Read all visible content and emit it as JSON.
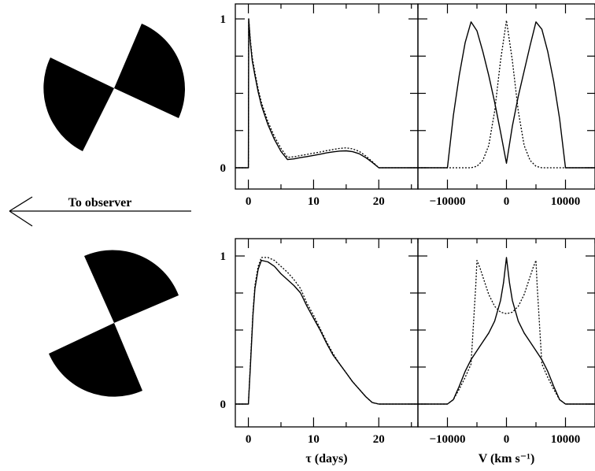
{
  "arrow_label": "To observer",
  "colors": {
    "ink": "#000000",
    "background": "#ffffff"
  },
  "chart_data": [
    {
      "type": "line",
      "panel": "top-left",
      "x_ticks": [
        "0",
        "10",
        "20"
      ],
      "y_ticks": [
        "0",
        "1"
      ],
      "xlim": [
        -2,
        26
      ],
      "ylim": [
        0,
        1.05
      ],
      "series": [
        {
          "style": "solid",
          "x": [
            -2,
            0,
            0.05,
            0.3,
            0.6,
            1,
            1.5,
            2,
            3,
            4,
            5,
            6,
            7,
            8,
            9,
            10,
            11,
            12,
            13,
            14,
            15,
            16,
            17,
            18,
            19,
            20,
            22,
            26
          ],
          "y": [
            0,
            0,
            1.0,
            0.84,
            0.72,
            0.62,
            0.51,
            0.42,
            0.29,
            0.19,
            0.11,
            0.055,
            0.06,
            0.068,
            0.075,
            0.083,
            0.091,
            0.1,
            0.107,
            0.112,
            0.114,
            0.108,
            0.094,
            0.068,
            0.036,
            0.0,
            0,
            0
          ]
        },
        {
          "style": "dotted",
          "x": [
            -2,
            0,
            0.05,
            0.3,
            0.6,
            1,
            1.5,
            2,
            3,
            4,
            5,
            6,
            7,
            8,
            9,
            10,
            11,
            12,
            13,
            14,
            15,
            16,
            17,
            18,
            19,
            20,
            22,
            26
          ],
          "y": [
            0,
            0,
            1.0,
            0.86,
            0.74,
            0.64,
            0.53,
            0.44,
            0.31,
            0.21,
            0.13,
            0.07,
            0.074,
            0.082,
            0.09,
            0.098,
            0.106,
            0.115,
            0.123,
            0.13,
            0.134,
            0.127,
            0.11,
            0.08,
            0.042,
            0.0,
            0,
            0
          ]
        }
      ]
    },
    {
      "type": "line",
      "panel": "top-right",
      "x_ticks": [
        "−10000",
        "0",
        "10000"
      ],
      "xlim": [
        -15000,
        15000
      ],
      "ylim": [
        0,
        1.05
      ],
      "series": [
        {
          "style": "solid",
          "x": [
            -15000,
            -11000,
            -10000,
            -9000,
            -8000,
            -7000,
            -6000,
            -5000,
            -4000,
            -3000,
            -2000,
            -1000,
            0,
            1000,
            2000,
            3000,
            4000,
            5000,
            6000,
            7000,
            8000,
            9000,
            10000,
            11000,
            15000
          ],
          "y": [
            0,
            0,
            0,
            0.35,
            0.62,
            0.84,
            0.98,
            0.92,
            0.78,
            0.62,
            0.44,
            0.24,
            0.03,
            0.28,
            0.48,
            0.65,
            0.82,
            0.98,
            0.93,
            0.78,
            0.58,
            0.33,
            0,
            0,
            0
          ]
        },
        {
          "style": "dotted",
          "x": [
            -15000,
            -6000,
            -5000,
            -4000,
            -3000,
            -2000,
            -1000,
            0,
            1000,
            2000,
            3000,
            4000,
            5000,
            6000,
            15000
          ],
          "y": [
            0,
            0,
            0.01,
            0.05,
            0.15,
            0.38,
            0.72,
            0.99,
            0.72,
            0.38,
            0.15,
            0.05,
            0.01,
            0,
            0
          ]
        }
      ]
    },
    {
      "type": "line",
      "panel": "bottom-left",
      "x_ticks": [
        "0",
        "10",
        "20"
      ],
      "y_ticks": [
        "0",
        "1"
      ],
      "xlabel": "τ (days)",
      "xlim": [
        -2,
        26
      ],
      "ylim": [
        0,
        1.05
      ],
      "series": [
        {
          "style": "solid",
          "x": [
            -2,
            0,
            0.3,
            0.7,
            1,
            1.5,
            2,
            3,
            4,
            5,
            6,
            7,
            8,
            9,
            10,
            11,
            12,
            13,
            14,
            15,
            16,
            17,
            18,
            19,
            20,
            22,
            26
          ],
          "y": [
            0,
            0,
            0.25,
            0.6,
            0.78,
            0.91,
            0.97,
            0.96,
            0.93,
            0.88,
            0.84,
            0.8,
            0.75,
            0.66,
            0.58,
            0.5,
            0.41,
            0.33,
            0.27,
            0.21,
            0.15,
            0.1,
            0.05,
            0.01,
            0,
            0,
            0
          ]
        },
        {
          "style": "dotted",
          "x": [
            -2,
            0,
            0.3,
            0.7,
            1,
            1.5,
            2,
            3,
            4,
            5,
            6,
            7,
            8,
            9,
            10,
            11,
            12,
            13,
            14,
            15,
            16,
            17,
            18,
            19,
            20,
            22,
            26
          ],
          "y": [
            0,
            0,
            0.27,
            0.62,
            0.8,
            0.93,
            0.99,
            0.99,
            0.97,
            0.93,
            0.89,
            0.84,
            0.78,
            0.68,
            0.6,
            0.51,
            0.42,
            0.34,
            0.27,
            0.21,
            0.15,
            0.1,
            0.05,
            0.01,
            0,
            0,
            0
          ]
        }
      ]
    },
    {
      "type": "line",
      "panel": "bottom-right",
      "x_ticks": [
        "−10000",
        "0",
        "10000"
      ],
      "xlabel": "V (km s⁻¹)",
      "xlim": [
        -15000,
        15000
      ],
      "ylim": [
        0,
        1.05
      ],
      "series": [
        {
          "style": "solid",
          "x": [
            -15000,
            -10000,
            -9000,
            -8000,
            -7000,
            -6000,
            -5000,
            -4000,
            -3000,
            -2000,
            -1000,
            -500,
            0,
            500,
            1000,
            2000,
            3000,
            4000,
            5000,
            6000,
            7000,
            8000,
            9000,
            10000,
            15000
          ],
          "y": [
            0,
            0,
            0.03,
            0.12,
            0.22,
            0.3,
            0.36,
            0.42,
            0.48,
            0.56,
            0.7,
            0.82,
            0.99,
            0.82,
            0.7,
            0.56,
            0.48,
            0.42,
            0.36,
            0.3,
            0.22,
            0.12,
            0.03,
            0,
            0
          ]
        },
        {
          "style": "dotted",
          "x": [
            -15000,
            -10000,
            -9000,
            -8000,
            -7000,
            -6000,
            -5200,
            -5000,
            -4500,
            -4000,
            -3000,
            -2000,
            -1000,
            0,
            1000,
            2000,
            3000,
            4000,
            4500,
            5000,
            5200,
            6000,
            7000,
            8000,
            9000,
            10000,
            15000
          ],
          "y": [
            0,
            0,
            0.03,
            0.1,
            0.18,
            0.27,
            0.8,
            0.97,
            0.92,
            0.86,
            0.74,
            0.66,
            0.62,
            0.61,
            0.62,
            0.66,
            0.74,
            0.86,
            0.92,
            0.97,
            0.8,
            0.27,
            0.18,
            0.1,
            0.03,
            0,
            0
          ]
        }
      ]
    }
  ]
}
